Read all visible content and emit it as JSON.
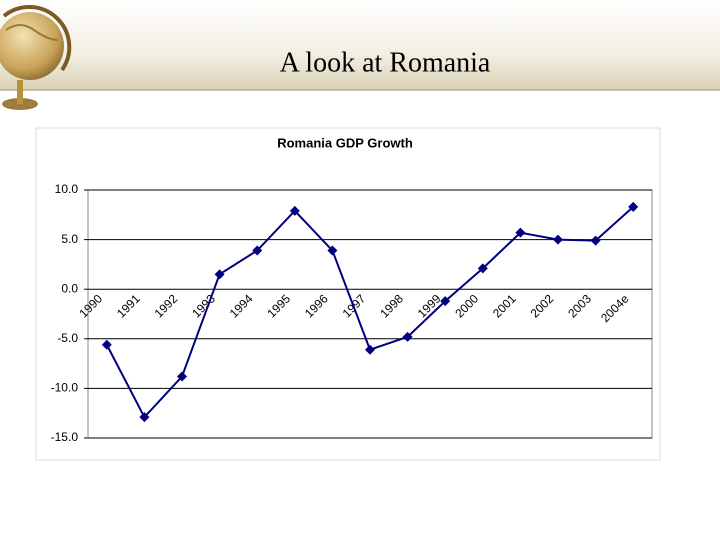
{
  "slide_title": "A look at Romania",
  "chart_data": {
    "type": "line",
    "title": "Romania GDP Growth",
    "categories": [
      "1990",
      "1991",
      "1992",
      "1993",
      "1994",
      "1995",
      "1996",
      "1997",
      "1998",
      "1999",
      "2000",
      "2001",
      "2002",
      "2003",
      "2004e"
    ],
    "series": [
      {
        "name": "GDP Growth",
        "color": "#000080",
        "values": [
          -5.6,
          -12.9,
          -8.8,
          1.5,
          3.9,
          7.9,
          3.9,
          -6.1,
          -4.8,
          -1.2,
          2.1,
          5.7,
          5.0,
          4.9,
          8.3
        ]
      }
    ],
    "ylim": [
      -15,
      10
    ],
    "yticks": [
      {
        "value": -15,
        "label": "-15.0"
      },
      {
        "value": -10,
        "label": "-10.0"
      },
      {
        "value": -5,
        "label": "-5.0"
      },
      {
        "value": 0,
        "label": "0.0"
      },
      {
        "value": 5,
        "label": "5.0"
      },
      {
        "value": 10,
        "label": "10.0"
      }
    ],
    "grid": true
  }
}
